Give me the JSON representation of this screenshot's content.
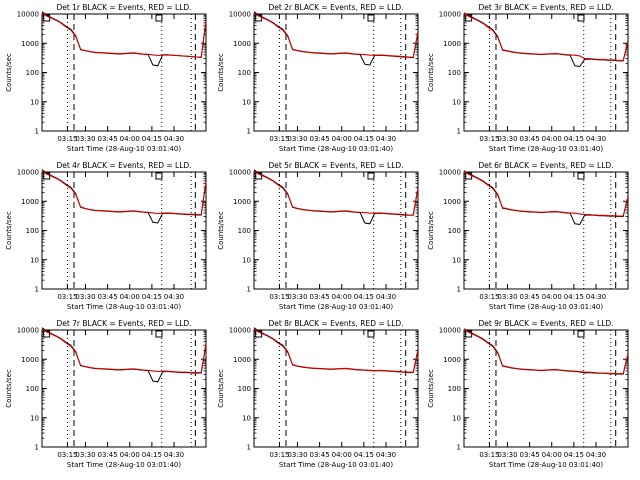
{
  "colors": {
    "background": "#ffffff",
    "axes": "#000000",
    "events": "#000000",
    "lld": "#d40000"
  },
  "chart_data": [
    {
      "type": "line",
      "title": "Det 1r BLACK = Events, RED = LLD.",
      "xlabel": "Start Time (28-Aug-10 03:01:40)",
      "ylabel": "Counts/sec",
      "xticks": [
        "03:15",
        "03:30",
        "03:45",
        "04:00",
        "04:15",
        "04:30"
      ],
      "yticks": [
        "1",
        "10",
        "100",
        "1000",
        "10000"
      ],
      "ylim": [
        1,
        10000
      ],
      "log_y": true,
      "variant": 0,
      "dashed_x": [
        0.195,
        0.935
      ],
      "dotted_x": [
        0.155,
        0.73,
        0.91
      ],
      "markers": [
        0.01,
        0.695
      ],
      "series": [
        {
          "name": "Events",
          "color": "black",
          "values": [
            12000,
            9000,
            7500,
            6200,
            5000,
            3800,
            3000,
            1800,
            600,
            550,
            510,
            480,
            470,
            460,
            450,
            440,
            430,
            440,
            450,
            460,
            440,
            420,
            410,
            180,
            170,
            400,
            410,
            390,
            380,
            370,
            360,
            350,
            340,
            330,
            6000
          ]
        },
        {
          "name": "LLD",
          "color": "red",
          "values": [
            11000,
            8500,
            7200,
            6000,
            4800,
            3600,
            2800,
            1700,
            620,
            560,
            520,
            490,
            480,
            470,
            460,
            450,
            440,
            450,
            460,
            470,
            450,
            430,
            420,
            400,
            380,
            390,
            400,
            390,
            380,
            370,
            360,
            350,
            340,
            330,
            5500
          ]
        }
      ]
    },
    {
      "type": "line",
      "title": "Det 2r BLACK = Events, RED = LLD.",
      "xlabel": "Start Time (28-Aug-10 03:01:40)",
      "ylabel": "Counts/sec",
      "xticks": [
        "03:15",
        "03:30",
        "03:45",
        "04:00",
        "04:15",
        "04:30"
      ],
      "yticks": [
        "1",
        "10",
        "100",
        "1000",
        "10000"
      ],
      "ylim": [
        1,
        10000
      ],
      "log_y": true,
      "variant": 1,
      "dashed_x": [
        0.195,
        0.925
      ],
      "dotted_x": [
        0.155,
        0.73,
        0.895
      ],
      "markers": [
        0.01,
        0.695
      ],
      "series": [
        {
          "name": "Events",
          "color": "black",
          "values": [
            12000,
            9000,
            7500,
            6200,
            5000,
            3800,
            3000,
            1800,
            600,
            560,
            520,
            490,
            470,
            460,
            450,
            440,
            430,
            440,
            450,
            460,
            440,
            420,
            410,
            190,
            180,
            380,
            390,
            380,
            370,
            360,
            350,
            340,
            330,
            320,
            2500
          ]
        },
        {
          "name": "LLD",
          "color": "red",
          "values": [
            11000,
            8500,
            7200,
            6000,
            4800,
            3600,
            2800,
            1700,
            620,
            570,
            530,
            500,
            480,
            470,
            460,
            450,
            440,
            450,
            460,
            470,
            450,
            430,
            420,
            410,
            390,
            390,
            400,
            390,
            380,
            370,
            360,
            350,
            340,
            330,
            2300
          ]
        }
      ]
    },
    {
      "type": "line",
      "title": "Det 3r BLACK = Events, RED = LLD.",
      "xlabel": "Start Time (28-Aug-10 03:01:40)",
      "ylabel": "Counts/sec",
      "xticks": [
        "03:15",
        "03:30",
        "03:45",
        "04:00",
        "04:15",
        "04:30"
      ],
      "yticks": [
        "1",
        "10",
        "100",
        "1000",
        "10000"
      ],
      "ylim": [
        1,
        10000
      ],
      "log_y": true,
      "variant": 2,
      "dashed_x": [
        0.195,
        0.925
      ],
      "dotted_x": [
        0.155,
        0.73,
        0.895
      ],
      "markers": [
        0.01,
        0.695
      ],
      "series": [
        {
          "name": "Events",
          "color": "black",
          "values": [
            11000,
            8800,
            7300,
            6000,
            4900,
            3700,
            2900,
            1700,
            580,
            540,
            500,
            470,
            450,
            440,
            430,
            420,
            410,
            420,
            430,
            440,
            420,
            400,
            390,
            170,
            160,
            280,
            290,
            280,
            270,
            270,
            260,
            260,
            250,
            250,
            1200
          ]
        },
        {
          "name": "LLD",
          "color": "red",
          "values": [
            10500,
            8300,
            7000,
            5800,
            4700,
            3500,
            2700,
            1600,
            600,
            550,
            510,
            480,
            460,
            450,
            440,
            430,
            420,
            430,
            440,
            450,
            430,
            410,
            400,
            390,
            370,
            300,
            300,
            290,
            280,
            280,
            270,
            270,
            260,
            260,
            1100
          ]
        }
      ]
    },
    {
      "type": "line",
      "title": "Det 4r BLACK = Events, RED = LLD.",
      "xlabel": "Start Time (28-Aug-10 03:01:40)",
      "ylabel": "Counts/sec",
      "xticks": [
        "03:15",
        "03:30",
        "03:45",
        "04:00",
        "04:15",
        "04:30"
      ],
      "yticks": [
        "1",
        "10",
        "100",
        "1000",
        "10000"
      ],
      "ylim": [
        1,
        10000
      ],
      "log_y": true,
      "variant": 0,
      "dashed_x": [
        0.195,
        0.935
      ],
      "dotted_x": [
        0.155,
        0.73,
        0.91
      ],
      "markers": [
        0.01,
        0.695
      ],
      "series": [
        {
          "name": "Events",
          "color": "black",
          "values": [
            12000,
            9000,
            7500,
            6200,
            5000,
            3800,
            3000,
            1800,
            620,
            560,
            510,
            480,
            470,
            460,
            450,
            440,
            430,
            440,
            450,
            460,
            440,
            420,
            410,
            190,
            180,
            380,
            390,
            380,
            370,
            360,
            350,
            350,
            340,
            340,
            5000
          ]
        },
        {
          "name": "LLD",
          "color": "red",
          "values": [
            11000,
            8500,
            7200,
            6000,
            4800,
            3600,
            2800,
            1700,
            640,
            570,
            520,
            490,
            480,
            470,
            460,
            450,
            440,
            450,
            460,
            470,
            450,
            430,
            420,
            400,
            380,
            390,
            400,
            390,
            380,
            370,
            360,
            360,
            350,
            350,
            4600
          ]
        }
      ]
    },
    {
      "type": "line",
      "title": "Det 5r BLACK = Events, RED = LLD.",
      "xlabel": "Start Time (28-Aug-10 03:01:40)",
      "ylabel": "Counts/sec",
      "xticks": [
        "03:15",
        "03:30",
        "03:45",
        "04:00",
        "04:15",
        "04:30"
      ],
      "yticks": [
        "1",
        "10",
        "100",
        "1000",
        "10000"
      ],
      "ylim": [
        1,
        10000
      ],
      "log_y": true,
      "variant": 1,
      "dashed_x": [
        0.195,
        0.925
      ],
      "dotted_x": [
        0.155,
        0.73,
        0.895
      ],
      "markers": [
        0.01,
        0.695
      ],
      "series": [
        {
          "name": "Events",
          "color": "black",
          "values": [
            12000,
            9000,
            7500,
            6200,
            5000,
            3800,
            3000,
            1800,
            620,
            560,
            520,
            490,
            470,
            460,
            450,
            440,
            430,
            440,
            450,
            460,
            440,
            420,
            410,
            180,
            170,
            380,
            390,
            380,
            370,
            360,
            350,
            340,
            330,
            330,
            3000
          ]
        },
        {
          "name": "LLD",
          "color": "red",
          "values": [
            11000,
            8500,
            7200,
            6000,
            4800,
            3600,
            2800,
            1700,
            640,
            570,
            530,
            500,
            480,
            470,
            460,
            450,
            440,
            450,
            460,
            470,
            450,
            430,
            420,
            410,
            390,
            390,
            400,
            390,
            380,
            370,
            360,
            350,
            340,
            340,
            2800
          ]
        }
      ]
    },
    {
      "type": "line",
      "title": "Det 6r BLACK = Events, RED = LLD.",
      "xlabel": "Start Time (28-Aug-10 03:01:40)",
      "ylabel": "Counts/sec",
      "xticks": [
        "03:15",
        "03:30",
        "03:45",
        "04:00",
        "04:15",
        "04:30"
      ],
      "yticks": [
        "1",
        "10",
        "100",
        "1000",
        "10000"
      ],
      "ylim": [
        1,
        10000
      ],
      "log_y": true,
      "variant": 2,
      "dashed_x": [
        0.195,
        0.925
      ],
      "dotted_x": [
        0.155,
        0.73,
        0.895
      ],
      "markers": [
        0.01,
        0.695
      ],
      "series": [
        {
          "name": "Events",
          "color": "black",
          "values": [
            11000,
            8800,
            7300,
            6000,
            4900,
            3700,
            2900,
            1700,
            580,
            540,
            500,
            470,
            450,
            440,
            430,
            420,
            410,
            420,
            430,
            440,
            420,
            400,
            390,
            170,
            160,
            330,
            340,
            330,
            320,
            320,
            310,
            310,
            300,
            300,
            1500
          ]
        },
        {
          "name": "LLD",
          "color": "red",
          "values": [
            10500,
            8300,
            7000,
            5800,
            4700,
            3500,
            2700,
            1600,
            600,
            550,
            510,
            480,
            460,
            450,
            440,
            430,
            420,
            430,
            440,
            450,
            430,
            410,
            400,
            390,
            370,
            350,
            350,
            340,
            330,
            330,
            320,
            320,
            310,
            310,
            1400
          ]
        }
      ]
    },
    {
      "type": "line",
      "title": "Det 7r BLACK = Events, RED = LLD.",
      "xlabel": "Start Time (28-Aug-10 03:01:40)",
      "ylabel": "Counts/sec",
      "xticks": [
        "03:15",
        "03:30",
        "03:45",
        "04:00",
        "04:15",
        "04:30"
      ],
      "yticks": [
        "1",
        "10",
        "100",
        "1000",
        "10000"
      ],
      "ylim": [
        1,
        10000
      ],
      "log_y": true,
      "variant": 0,
      "dashed_x": [
        0.195,
        0.935
      ],
      "dotted_x": [
        0.155,
        0.73,
        0.91
      ],
      "markers": [
        0.01,
        0.695
      ],
      "series": [
        {
          "name": "Events",
          "color": "black",
          "values": [
            12000,
            9000,
            7500,
            6200,
            5000,
            3800,
            3000,
            1800,
            600,
            550,
            510,
            480,
            470,
            460,
            450,
            440,
            430,
            440,
            450,
            460,
            440,
            420,
            410,
            180,
            170,
            370,
            380,
            370,
            360,
            350,
            350,
            340,
            340,
            340,
            3500
          ]
        },
        {
          "name": "LLD",
          "color": "red",
          "values": [
            11000,
            8500,
            7200,
            6000,
            4800,
            3600,
            2800,
            1700,
            620,
            560,
            520,
            490,
            480,
            470,
            460,
            450,
            440,
            450,
            460,
            470,
            450,
            430,
            420,
            400,
            380,
            390,
            390,
            380,
            370,
            360,
            360,
            350,
            350,
            350,
            3200
          ]
        }
      ]
    },
    {
      "type": "line",
      "title": "Det 8r BLACK = Events, RED = LLD.",
      "xlabel": "Start Time (28-Aug-10 03:01:40)",
      "ylabel": "Counts/sec",
      "xticks": [
        "03:15",
        "03:30",
        "03:45",
        "04:00",
        "04:15",
        "04:30"
      ],
      "yticks": [
        "1",
        "10",
        "100",
        "1000",
        "10000"
      ],
      "ylim": [
        1,
        10000
      ],
      "log_y": true,
      "variant": 1,
      "dashed_x": [
        0.195,
        0.925
      ],
      "dotted_x": [
        0.155,
        0.73,
        0.895
      ],
      "markers": [
        0.01,
        0.695
      ],
      "series": [
        {
          "name": "Events",
          "color": "black",
          "values": [
            12000,
            9000,
            7500,
            6200,
            5000,
            3800,
            3000,
            1800,
            640,
            580,
            540,
            510,
            490,
            480,
            470,
            460,
            450,
            460,
            470,
            480,
            460,
            440,
            430,
            420,
            410,
            400,
            410,
            400,
            390,
            380,
            370,
            360,
            350,
            350,
            2200
          ]
        },
        {
          "name": "LLD",
          "color": "red",
          "values": [
            11000,
            8500,
            7200,
            6000,
            4800,
            3600,
            2800,
            1700,
            660,
            590,
            550,
            520,
            500,
            490,
            480,
            470,
            460,
            470,
            480,
            490,
            470,
            450,
            440,
            430,
            420,
            410,
            420,
            410,
            400,
            390,
            380,
            370,
            360,
            360,
            2000
          ]
        }
      ]
    },
    {
      "type": "line",
      "title": "Det 9r BLACK = Events, RED = LLD.",
      "xlabel": "Start Time (28-Aug-10 03:01:40)",
      "ylabel": "Counts/sec",
      "xticks": [
        "03:15",
        "03:30",
        "03:45",
        "04:00",
        "04:15",
        "04:30"
      ],
      "yticks": [
        "1",
        "10",
        "100",
        "1000",
        "10000"
      ],
      "ylim": [
        1,
        10000
      ],
      "log_y": true,
      "variant": 2,
      "dashed_x": [
        0.195,
        0.925
      ],
      "dotted_x": [
        0.155,
        0.73,
        0.895
      ],
      "markers": [
        0.01,
        0.695
      ],
      "series": [
        {
          "name": "Events",
          "color": "black",
          "values": [
            11000,
            8800,
            7300,
            6000,
            4900,
            3700,
            2900,
            1700,
            580,
            540,
            500,
            470,
            450,
            440,
            430,
            420,
            410,
            420,
            430,
            440,
            420,
            400,
            390,
            380,
            370,
            340,
            350,
            340,
            330,
            330,
            320,
            320,
            310,
            310,
            1600
          ]
        },
        {
          "name": "LLD",
          "color": "red",
          "values": [
            10500,
            8300,
            7000,
            5800,
            4700,
            3500,
            2700,
            1600,
            600,
            550,
            510,
            480,
            460,
            450,
            440,
            430,
            420,
            430,
            440,
            450,
            430,
            410,
            400,
            390,
            380,
            360,
            360,
            350,
            340,
            340,
            330,
            330,
            320,
            320,
            1500
          ]
        }
      ]
    }
  ]
}
